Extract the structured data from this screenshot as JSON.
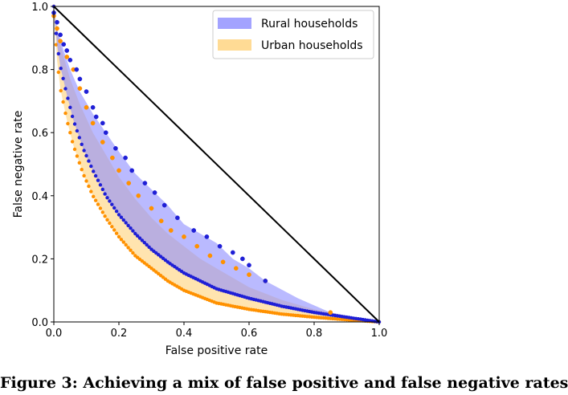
{
  "chart_data": {
    "type": "area",
    "title": "",
    "xlabel": "False positive rate",
    "ylabel": "False negative rate",
    "xlim": [
      0.0,
      1.0
    ],
    "ylim": [
      0.0,
      1.0
    ],
    "xticks": [
      "0.0",
      "0.2",
      "0.4",
      "0.6",
      "0.8",
      "1.0"
    ],
    "yticks": [
      "0.0",
      "0.2",
      "0.4",
      "0.6",
      "0.8",
      "1.0"
    ],
    "legend_position": "top-right",
    "grid": false,
    "reference_line": {
      "x": [
        0.0,
        1.0
      ],
      "y": [
        1.0,
        0.0
      ],
      "color": "#000000"
    },
    "series": [
      {
        "name": "Rural households",
        "fill_color": "#8c8cff",
        "point_color": "#1f1fd6",
        "upper_boundary": {
          "x": [
            0.0,
            0.01,
            0.03,
            0.05,
            0.08,
            0.12,
            0.16,
            0.2,
            0.25,
            0.3,
            0.35,
            0.4,
            0.45,
            0.5,
            0.55,
            0.6,
            0.65,
            0.75,
            0.85,
            1.0
          ],
          "y": [
            1.0,
            0.93,
            0.86,
            0.8,
            0.73,
            0.66,
            0.6,
            0.54,
            0.47,
            0.42,
            0.37,
            0.31,
            0.28,
            0.25,
            0.2,
            0.17,
            0.13,
            0.075,
            0.03,
            0.0
          ]
        },
        "lower_boundary": {
          "x": [
            0.0,
            0.01,
            0.02,
            0.04,
            0.06,
            0.09,
            0.12,
            0.16,
            0.2,
            0.25,
            0.3,
            0.35,
            0.4,
            0.45,
            0.5,
            0.55,
            0.6,
            0.7,
            0.8,
            0.9,
            1.0
          ],
          "y": [
            1.0,
            0.88,
            0.81,
            0.72,
            0.64,
            0.55,
            0.48,
            0.4,
            0.34,
            0.28,
            0.23,
            0.19,
            0.155,
            0.13,
            0.105,
            0.09,
            0.075,
            0.05,
            0.03,
            0.015,
            0.0
          ]
        },
        "points": {
          "x": [
            0.0,
            0.01,
            0.02,
            0.03,
            0.04,
            0.05,
            0.07,
            0.08,
            0.1,
            0.12,
            0.13,
            0.15,
            0.16,
            0.19,
            0.22,
            0.24,
            0.28,
            0.31,
            0.34,
            0.38,
            0.43,
            0.47,
            0.51,
            0.55,
            0.58,
            0.6,
            0.65
          ],
          "y": [
            0.98,
            0.95,
            0.91,
            0.88,
            0.86,
            0.83,
            0.8,
            0.77,
            0.73,
            0.68,
            0.65,
            0.63,
            0.6,
            0.55,
            0.52,
            0.48,
            0.44,
            0.41,
            0.37,
            0.33,
            0.29,
            0.27,
            0.24,
            0.22,
            0.2,
            0.18,
            0.13
          ]
        }
      },
      {
        "name": "Urban households",
        "fill_color": "#ffd27a",
        "point_color": "#ff9100",
        "upper_boundary": {
          "x": [
            0.0,
            0.01,
            0.03,
            0.05,
            0.08,
            0.12,
            0.16,
            0.2,
            0.25,
            0.3,
            0.35,
            0.4,
            0.45,
            0.5,
            0.55,
            0.6,
            0.7,
            0.8,
            0.85,
            1.0
          ],
          "y": [
            1.0,
            0.92,
            0.84,
            0.77,
            0.69,
            0.6,
            0.53,
            0.46,
            0.39,
            0.33,
            0.28,
            0.24,
            0.2,
            0.17,
            0.14,
            0.11,
            0.07,
            0.04,
            0.03,
            0.0
          ]
        },
        "lower_boundary": {
          "x": [
            0.0,
            0.01,
            0.02,
            0.04,
            0.06,
            0.09,
            0.12,
            0.16,
            0.2,
            0.25,
            0.3,
            0.35,
            0.4,
            0.45,
            0.5,
            0.6,
            0.7,
            0.8,
            0.9,
            1.0
          ],
          "y": [
            1.0,
            0.83,
            0.74,
            0.64,
            0.56,
            0.47,
            0.4,
            0.33,
            0.27,
            0.21,
            0.17,
            0.13,
            0.1,
            0.08,
            0.06,
            0.04,
            0.025,
            0.015,
            0.007,
            0.0
          ]
        },
        "points": {
          "x": [
            0.0,
            0.01,
            0.02,
            0.04,
            0.06,
            0.08,
            0.1,
            0.12,
            0.15,
            0.18,
            0.2,
            0.23,
            0.26,
            0.3,
            0.33,
            0.36,
            0.4,
            0.44,
            0.48,
            0.52,
            0.56,
            0.6,
            0.65,
            0.85
          ],
          "y": [
            0.97,
            0.93,
            0.89,
            0.84,
            0.8,
            0.74,
            0.68,
            0.63,
            0.57,
            0.52,
            0.48,
            0.44,
            0.4,
            0.36,
            0.32,
            0.29,
            0.27,
            0.24,
            0.21,
            0.19,
            0.17,
            0.15,
            0.13,
            0.03
          ]
        }
      }
    ]
  },
  "caption": {
    "text": "Figure 3: Achieving a mix of false positive and false negative rates"
  }
}
